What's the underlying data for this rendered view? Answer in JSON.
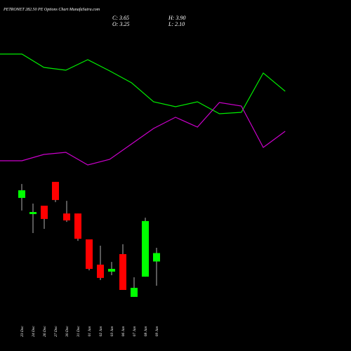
{
  "chart_data": [
    {
      "type": "line",
      "categories": [
        null,
        null,
        null,
        null,
        null,
        null,
        null,
        null,
        null,
        null,
        null,
        null,
        null,
        null
      ],
      "ylim": [
        0,
        100
      ],
      "series": [
        {
          "color": "#00ee00",
          "values": [
            86.5,
            86.5,
            77,
            75,
            82.5,
            74.5,
            66,
            52.5,
            49,
            52.5,
            44,
            45,
            73,
            60
          ]
        },
        {
          "color": "#cc00cc",
          "values": [
            10.5,
            10.5,
            15,
            16.5,
            7.5,
            11.5,
            22.5,
            33.5,
            41.5,
            34.5,
            52,
            49.5,
            20,
            31.5
          ]
        }
      ]
    },
    {
      "type": "candlestick",
      "title": "PETRONET 282.50 PE Options Chart MunafaSutra.com",
      "annotations": [
        "C: 3.65",
        "H: 3.90",
        "O: 3.25",
        "L: 2.10"
      ],
      "categories": [
        "23 Dec",
        "24 Dec",
        "26 Dec",
        "27 Dec",
        "30 Dec",
        "31 Dec",
        "01 Jan",
        "02 Jan",
        "03 Jan",
        "06 Jan",
        "07 Jan",
        "08 Jan",
        "09 Jan"
      ],
      "open": [
        6.27,
        5.5,
        5.9,
        7.03,
        5.53,
        5.53,
        4.3,
        3.1,
        2.77,
        3.6,
        1.57,
        2.53,
        3.25
      ],
      "high": [
        6.93,
        6.0,
        5.9,
        7.03,
        6.13,
        5.53,
        4.3,
        4.0,
        3.23,
        4.07,
        2.5,
        5.33,
        3.9
      ],
      "low": [
        5.67,
        4.6,
        4.8,
        6.07,
        5.13,
        4.23,
        2.83,
        2.37,
        2.6,
        1.9,
        1.57,
        2.53,
        2.1
      ],
      "close": [
        6.63,
        5.6,
        5.27,
        6.17,
        5.2,
        4.33,
        2.9,
        2.47,
        2.9,
        1.9,
        2.0,
        5.17,
        3.65
      ],
      "up_color": "#00ff00",
      "down_color": "#ff0000",
      "ylim": [
        1.5,
        7.5
      ]
    }
  ]
}
